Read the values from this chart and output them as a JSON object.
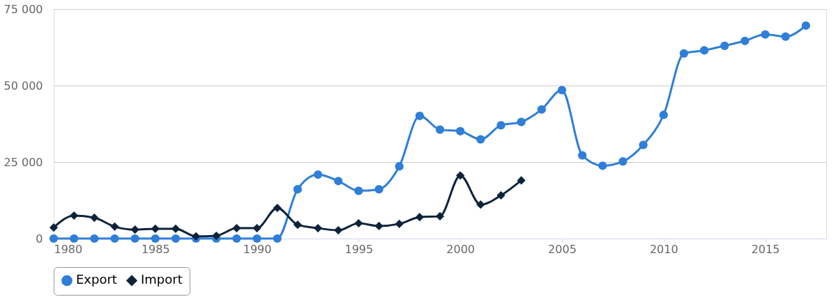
{
  "chart_data": {
    "type": "line",
    "x": [
      1980,
      1981,
      1982,
      1983,
      1984,
      1985,
      1986,
      1987,
      1988,
      1989,
      1990,
      1991,
      1992,
      1993,
      1994,
      1995,
      1996,
      1997,
      1998,
      1999,
      2000,
      2001,
      2002,
      2003,
      2004,
      2005,
      2006,
      2007,
      2008,
      2009,
      2010,
      2011,
      2012,
      2013,
      2014,
      2015,
      2016,
      2017
    ],
    "series": [
      {
        "name": "Export",
        "color": "#2f7ed8",
        "marker": "circle",
        "values": [
          0,
          0,
          0,
          0,
          0,
          0,
          0,
          0,
          0,
          0,
          0,
          0,
          16100,
          20900,
          18800,
          15600,
          16100,
          23600,
          40100,
          35600,
          35100,
          32400,
          37000,
          38100,
          42200,
          48500,
          27200,
          23800,
          25200,
          30600,
          40400,
          60500,
          61500,
          63000,
          64600,
          66700,
          66000,
          69600
        ]
      },
      {
        "name": "Import",
        "color": "#0d233a",
        "marker": "diamond",
        "values": [
          3600,
          7500,
          6800,
          3900,
          2900,
          3200,
          3200,
          700,
          900,
          3400,
          3400,
          10000,
          4500,
          3400,
          2700,
          5000,
          4100,
          4800,
          7000,
          7300,
          20600,
          11100,
          14100,
          19000,
          null,
          null,
          null,
          null,
          null,
          null,
          null,
          null,
          null,
          null,
          null,
          null,
          null,
          null
        ]
      }
    ],
    "xlim": [
      1980,
      2018
    ],
    "xticks": [
      1980,
      1985,
      1990,
      1995,
      2000,
      2005,
      2010,
      2015
    ],
    "ylim": [
      0,
      75000
    ],
    "yticks": [
      {
        "value": 0,
        "label": "0"
      },
      {
        "value": 25000,
        "label": "25 000"
      },
      {
        "value": 50000,
        "label": "50 000"
      },
      {
        "value": 75000,
        "label": "75 000"
      }
    ],
    "grid": "y",
    "legend": "bottom"
  }
}
